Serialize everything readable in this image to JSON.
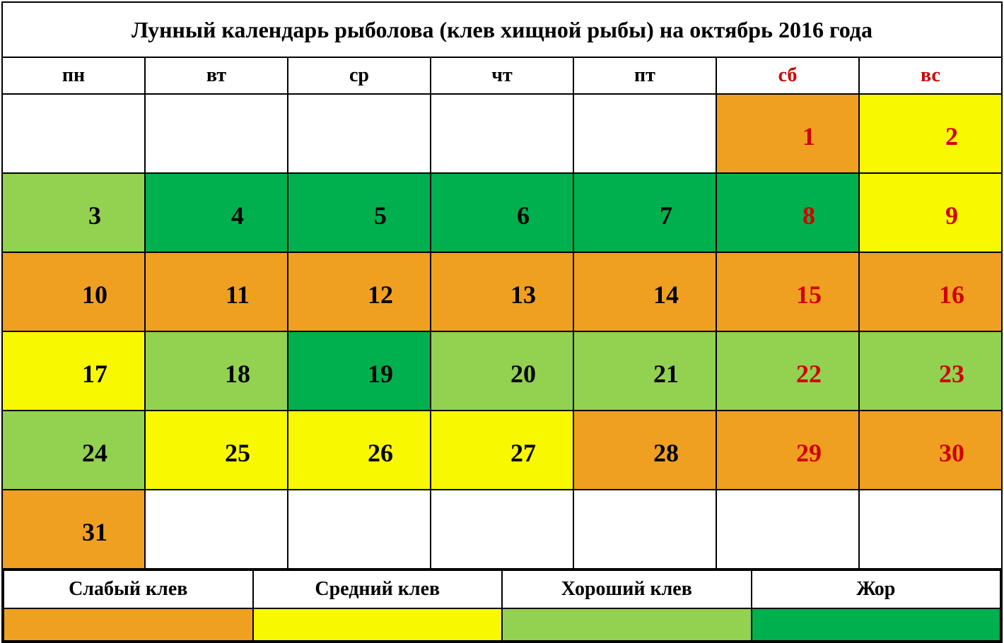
{
  "title": "Лунный календарь рыболова (клев хищной рыбы) на октябрь 2016 года",
  "colors": {
    "text_default": "#000000",
    "text_weekend": "#d00000",
    "border": "#000000",
    "bg_white": "#ffffff",
    "bg_orange": "#f0a020",
    "bg_yellow": "#f8f800",
    "bg_lightgreen": "#93d150",
    "bg_green": "#00b04e"
  },
  "days_of_week": [
    {
      "label": "пн",
      "weekend": false
    },
    {
      "label": "вт",
      "weekend": false
    },
    {
      "label": "ср",
      "weekend": false
    },
    {
      "label": "чт",
      "weekend": false
    },
    {
      "label": "пт",
      "weekend": false
    },
    {
      "label": "сб",
      "weekend": true
    },
    {
      "label": "вс",
      "weekend": true
    }
  ],
  "weeks": [
    [
      {
        "day": "",
        "bg": "bg_white",
        "weekend": false
      },
      {
        "day": "",
        "bg": "bg_white",
        "weekend": false
      },
      {
        "day": "",
        "bg": "bg_white",
        "weekend": false
      },
      {
        "day": "",
        "bg": "bg_white",
        "weekend": false
      },
      {
        "day": "",
        "bg": "bg_white",
        "weekend": false
      },
      {
        "day": "1",
        "bg": "bg_orange",
        "weekend": true
      },
      {
        "day": "2",
        "bg": "bg_yellow",
        "weekend": true
      }
    ],
    [
      {
        "day": "3",
        "bg": "bg_lightgreen",
        "weekend": false
      },
      {
        "day": "4",
        "bg": "bg_green",
        "weekend": false
      },
      {
        "day": "5",
        "bg": "bg_green",
        "weekend": false
      },
      {
        "day": "6",
        "bg": "bg_green",
        "weekend": false
      },
      {
        "day": "7",
        "bg": "bg_green",
        "weekend": false
      },
      {
        "day": "8",
        "bg": "bg_green",
        "weekend": true
      },
      {
        "day": "9",
        "bg": "bg_yellow",
        "weekend": true
      }
    ],
    [
      {
        "day": "10",
        "bg": "bg_orange",
        "weekend": false
      },
      {
        "day": "11",
        "bg": "bg_orange",
        "weekend": false
      },
      {
        "day": "12",
        "bg": "bg_orange",
        "weekend": false
      },
      {
        "day": "13",
        "bg": "bg_orange",
        "weekend": false
      },
      {
        "day": "14",
        "bg": "bg_orange",
        "weekend": false
      },
      {
        "day": "15",
        "bg": "bg_orange",
        "weekend": true
      },
      {
        "day": "16",
        "bg": "bg_orange",
        "weekend": true
      }
    ],
    [
      {
        "day": "17",
        "bg": "bg_yellow",
        "weekend": false
      },
      {
        "day": "18",
        "bg": "bg_lightgreen",
        "weekend": false
      },
      {
        "day": "19",
        "bg": "bg_green",
        "weekend": false
      },
      {
        "day": "20",
        "bg": "bg_lightgreen",
        "weekend": false
      },
      {
        "day": "21",
        "bg": "bg_lightgreen",
        "weekend": false
      },
      {
        "day": "22",
        "bg": "bg_lightgreen",
        "weekend": true
      },
      {
        "day": "23",
        "bg": "bg_lightgreen",
        "weekend": true
      }
    ],
    [
      {
        "day": "24",
        "bg": "bg_lightgreen",
        "weekend": false
      },
      {
        "day": "25",
        "bg": "bg_yellow",
        "weekend": false
      },
      {
        "day": "26",
        "bg": "bg_yellow",
        "weekend": false
      },
      {
        "day": "27",
        "bg": "bg_yellow",
        "weekend": false
      },
      {
        "day": "28",
        "bg": "bg_orange",
        "weekend": false
      },
      {
        "day": "29",
        "bg": "bg_orange",
        "weekend": true
      },
      {
        "day": "30",
        "bg": "bg_orange",
        "weekend": true
      }
    ],
    [
      {
        "day": "31",
        "bg": "bg_orange",
        "weekend": false
      },
      {
        "day": "",
        "bg": "bg_white",
        "weekend": false
      },
      {
        "day": "",
        "bg": "bg_white",
        "weekend": false
      },
      {
        "day": "",
        "bg": "bg_white",
        "weekend": false
      },
      {
        "day": "",
        "bg": "bg_white",
        "weekend": false
      },
      {
        "day": "",
        "bg": "bg_white",
        "weekend": true
      },
      {
        "day": "",
        "bg": "bg_white",
        "weekend": true
      }
    ]
  ],
  "legend": [
    {
      "label": "Слабый клев",
      "bg": "bg_orange"
    },
    {
      "label": "Средний клев",
      "bg": "bg_yellow"
    },
    {
      "label": "Хороший клев",
      "bg": "bg_lightgreen"
    },
    {
      "label": "Жор",
      "bg": "bg_green"
    }
  ]
}
